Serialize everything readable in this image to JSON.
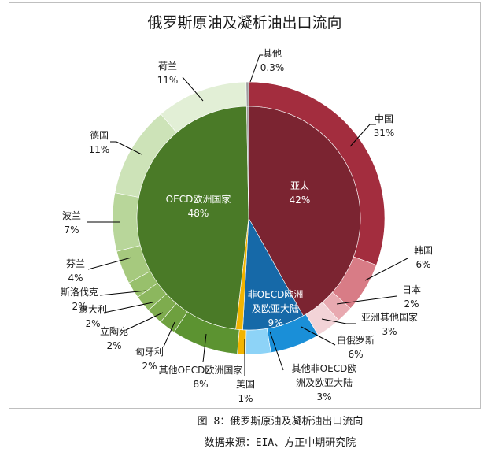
{
  "chart_data": {
    "type": "pie",
    "title": "俄罗斯原油及凝析油出口流向",
    "inner": [
      {
        "name": "亚太",
        "value": 42,
        "label": "42%",
        "color": "#7b2431"
      },
      {
        "name": "非OECD欧洲及欧亚大陆",
        "value": 9,
        "label": "9%",
        "color": "#1669a8"
      },
      {
        "name": "美国",
        "value": 1,
        "label": "1%",
        "color": "#f2b400"
      },
      {
        "name": "OECD欧洲国家",
        "value": 48,
        "label": "48%",
        "color": "#4a7a27"
      },
      {
        "name": "其他",
        "value": 0.3,
        "label": "0.3%",
        "color": "#9e9e9e"
      }
    ],
    "outer": [
      {
        "name": "中国",
        "value": 31,
        "label": "31%",
        "color": "#a32d3e"
      },
      {
        "name": "韩国",
        "value": 6,
        "label": "6%",
        "color": "#d87c86"
      },
      {
        "name": "日本",
        "value": 2,
        "label": "2%",
        "color": "#e8a9b0"
      },
      {
        "name": "亚洲其他国家",
        "value": 3,
        "label": "3%",
        "color": "#f2d3d7"
      },
      {
        "name": "白俄罗斯",
        "value": 6,
        "label": "6%",
        "color": "#1a8fd8"
      },
      {
        "name": "其他非OECD欧洲及欧亚大陆",
        "value": 3,
        "label": "3%",
        "color": "#8dd3f7"
      },
      {
        "name": "美国",
        "value": 1,
        "label": "1%",
        "color": "#f2b400"
      },
      {
        "name": "其他OECD欧洲国家",
        "value": 8,
        "label": "8%",
        "color": "#5c9331"
      },
      {
        "name": "匈牙利",
        "value": 2,
        "label": "2%",
        "color": "#6ea03f"
      },
      {
        "name": "立陶宛",
        "value": 2,
        "label": "2%",
        "color": "#7eac4e"
      },
      {
        "name": "意大利",
        "value": 2,
        "label": "2%",
        "color": "#8cb75e"
      },
      {
        "name": "斯洛伐克",
        "value": 2,
        "label": "2%",
        "color": "#98c06c"
      },
      {
        "name": "芬兰",
        "value": 4,
        "label": "4%",
        "color": "#a6c97e"
      },
      {
        "name": "波兰",
        "value": 7,
        "label": "7%",
        "color": "#b8d69a"
      },
      {
        "name": "德国",
        "value": 11,
        "label": "11%",
        "color": "#cde3b8"
      },
      {
        "name": "荷兰",
        "value": 11,
        "label": "11%",
        "color": "#e2efd6"
      },
      {
        "name": "其他",
        "value": 0.3,
        "label": "0.3%",
        "color": "#9e9e9e"
      }
    ]
  },
  "caption": {
    "figure": "图 8：俄罗斯原油及凝析油出口流向",
    "source": "数据来源：EIA、方正中期研究院"
  }
}
